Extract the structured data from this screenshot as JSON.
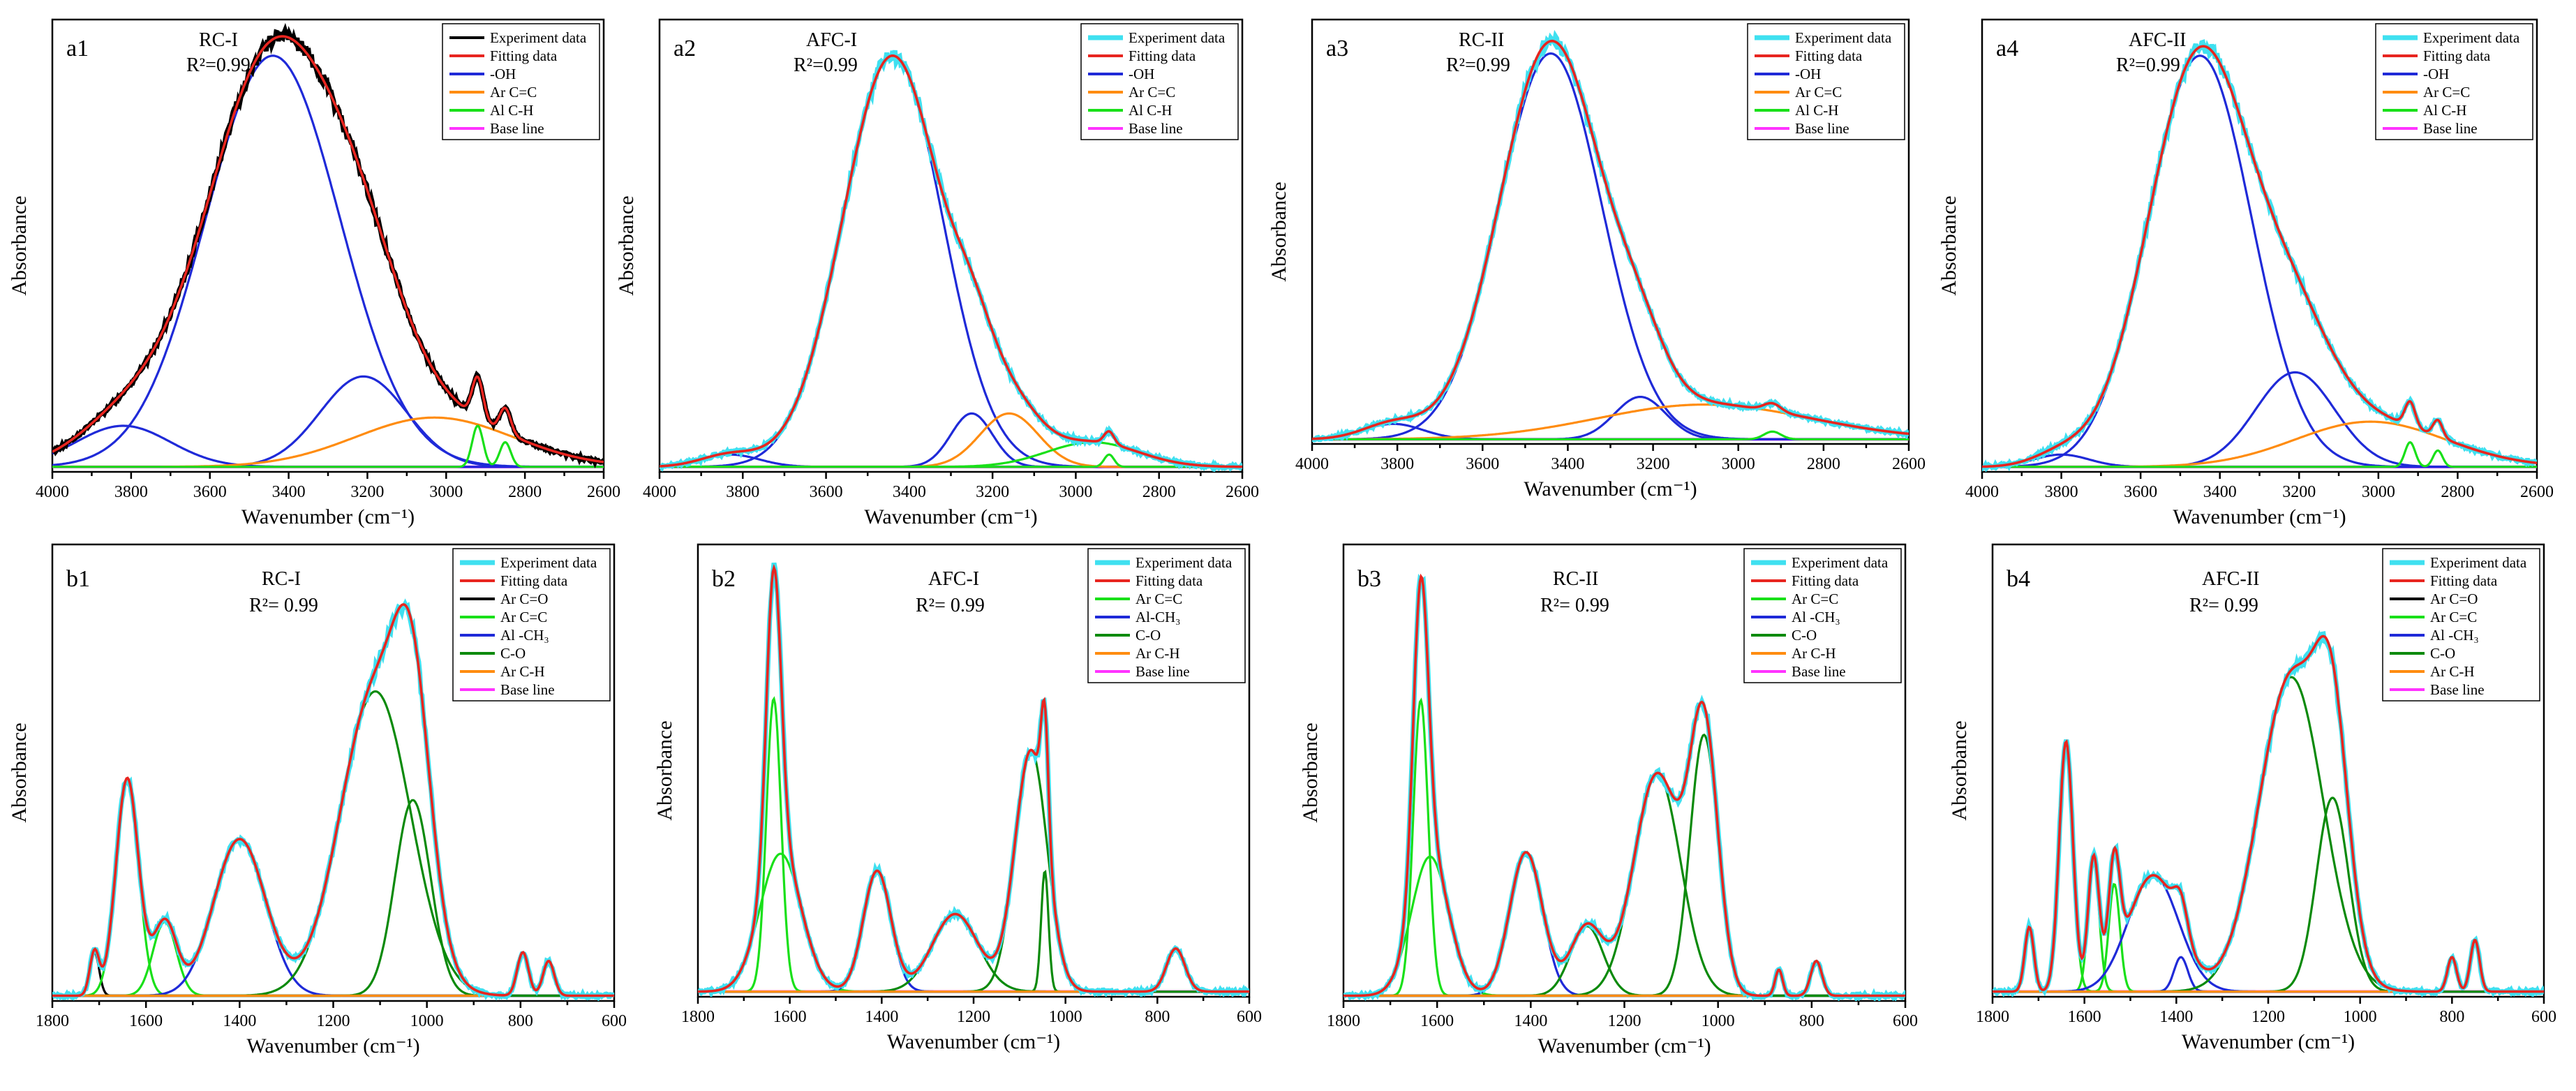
{
  "figure": {
    "domain": "spectroscopy"
  },
  "colors": {
    "experiment": "#3fe0f0",
    "fitting": "#e8251f",
    "oh": "#1f2ad8",
    "ar_cc": "#ff8c10",
    "al_ch": "#19e019",
    "base": "#ff33ff",
    "ar_co": "#000000",
    "ar_cc_b": "#19e019",
    "al_ch3": "#1f2ad8",
    "c_o": "#0b8a0b",
    "ar_ch_b": "#ff8c10"
  },
  "chart_data": [
    {
      "id": "a1",
      "tag": "a1",
      "sample": "RC-I",
      "r2": "R²=0.99",
      "type": "line",
      "xlim": [
        4000,
        2600
      ],
      "ylim": [
        0,
        1.1
      ],
      "xticks": [
        "4000",
        "3800",
        "3600",
        "3400",
        "3200",
        "3000",
        "2800",
        "2600"
      ],
      "xlabel": "Wavenumber (cm⁻¹)",
      "ylabel": "Absorbance",
      "legend": [
        "Experiment data",
        "Fitting data",
        "-OH",
        "Ar C=C",
        "Al C-H",
        "Base line"
      ],
      "legend_colors": [
        "#000000",
        "#e8251f",
        "#1f2ad8",
        "#ff8c10",
        "#19e019",
        "#ff33ff"
      ],
      "exp_color": "#000000",
      "components": [
        {
          "name": "-OH",
          "color": "#1f2ad8",
          "peaks": [
            [
              3440,
              1.0,
              170
            ]
          ]
        },
        {
          "name": "-OH",
          "color": "#1f2ad8",
          "peaks": [
            [
              3210,
              0.22,
              110
            ]
          ]
        },
        {
          "name": "-OH",
          "color": "#1f2ad8",
          "peaks": [
            [
              3820,
              0.1,
              120
            ]
          ]
        },
        {
          "name": "Ar C=C",
          "color": "#ff8c10",
          "peaks": [
            [
              3030,
              0.12,
              200
            ]
          ]
        },
        {
          "name": "Al C-H",
          "color": "#19e019",
          "peaks": [
            [
              2920,
              0.1,
              14
            ],
            [
              2850,
              0.06,
              14
            ]
          ]
        }
      ]
    },
    {
      "id": "a2",
      "tag": "a2",
      "sample": "AFC-I",
      "r2": "R²=0.99",
      "type": "line",
      "xlim": [
        4000,
        2600
      ],
      "ylim": [
        0,
        1.1
      ],
      "xticks": [
        "4000",
        "3800",
        "3600",
        "3400",
        "3200",
        "3000",
        "2800",
        "2600"
      ],
      "xlabel": "Wavenumber (cm⁻¹)",
      "ylabel": "Absorbance",
      "legend": [
        "Experiment data",
        "Fitting data",
        "-OH",
        "Ar C=C",
        "Al C-H",
        "Base line"
      ],
      "legend_colors": [
        "#3fe0f0",
        "#e8251f",
        "#1f2ad8",
        "#ff8c10",
        "#19e019",
        "#ff33ff"
      ],
      "exp_color": "#3fe0f0",
      "components": [
        {
          "name": "-OH",
          "color": "#1f2ad8",
          "peaks": [
            [
              3440,
              1.0,
              120
            ]
          ]
        },
        {
          "name": "-OH",
          "color": "#1f2ad8",
          "peaks": [
            [
              3250,
              0.13,
              50
            ]
          ]
        },
        {
          "name": "-OH",
          "color": "#1f2ad8",
          "peaks": [
            [
              3830,
              0.03,
              70
            ]
          ]
        },
        {
          "name": "Ar C=C",
          "color": "#ff8c10",
          "peaks": [
            [
              3160,
              0.13,
              70
            ]
          ]
        },
        {
          "name": "Al C-H",
          "color": "#19e019",
          "peaks": [
            [
              2960,
              0.06,
              110
            ]
          ]
        },
        {
          "name": "Al C-H",
          "color": "#19e019",
          "peaks": [
            [
              2920,
              0.03,
              12
            ]
          ]
        }
      ]
    },
    {
      "id": "a3",
      "tag": "a3",
      "sample": "RC-II",
      "r2": "R²=0.99",
      "type": "line",
      "xlim": [
        4000,
        2600
      ],
      "ylim": [
        0,
        1.1
      ],
      "xticks": [
        "4000",
        "3800",
        "3600",
        "3400",
        "3200",
        "3000",
        "2800",
        "2600"
      ],
      "xlabel": "Wavenumber (cm⁻¹)",
      "ylabel": "Absorbance",
      "legend": [
        "Experiment data",
        "Fitting data",
        "-OH",
        "Ar C=C",
        "Al C-H",
        "Base line"
      ],
      "legend_colors": [
        "#3fe0f0",
        "#e8251f",
        "#1f2ad8",
        "#ff8c10",
        "#19e019",
        "#ff33ff"
      ],
      "exp_color": "#3fe0f0",
      "components": [
        {
          "name": "-OH",
          "color": "#1f2ad8",
          "peaks": [
            [
              3440,
              1.0,
              120
            ]
          ]
        },
        {
          "name": "-OH",
          "color": "#1f2ad8",
          "peaks": [
            [
              3230,
              0.11,
              60
            ]
          ]
        },
        {
          "name": "-OH",
          "color": "#1f2ad8",
          "peaks": [
            [
              3810,
              0.04,
              70
            ]
          ]
        },
        {
          "name": "Ar C=C",
          "color": "#ff8c10",
          "peaks": [
            [
              3080,
              0.09,
              250
            ]
          ]
        },
        {
          "name": "Al C-H",
          "color": "#19e019",
          "peaks": [
            [
              2920,
              0.02,
              20
            ]
          ]
        }
      ]
    },
    {
      "id": "a4",
      "tag": "a4",
      "sample": "AFC-II",
      "r2": "R²=0.99",
      "type": "line",
      "xlim": [
        4000,
        2600
      ],
      "ylim": [
        0,
        1.1
      ],
      "xticks": [
        "4000",
        "3800",
        "3600",
        "3400",
        "3200",
        "3000",
        "2800",
        "2600"
      ],
      "xlabel": "Wavenumber (cm⁻¹)",
      "ylabel": "Absorbance",
      "legend": [
        "Experiment data",
        "Fitting data",
        "-OH",
        "Ar C=C",
        "Al C-H",
        "Base line"
      ],
      "legend_colors": [
        "#3fe0f0",
        "#e8251f",
        "#1f2ad8",
        "#ff8c10",
        "#19e019",
        "#ff33ff"
      ],
      "exp_color": "#3fe0f0",
      "components": [
        {
          "name": "-OH",
          "color": "#1f2ad8",
          "peaks": [
            [
              3450,
              1.0,
              130
            ]
          ]
        },
        {
          "name": "-OH",
          "color": "#1f2ad8",
          "peaks": [
            [
              3210,
              0.23,
              100
            ]
          ]
        },
        {
          "name": "-OH",
          "color": "#1f2ad8",
          "peaks": [
            [
              3800,
              0.03,
              70
            ]
          ]
        },
        {
          "name": "Ar C=C",
          "color": "#ff8c10",
          "peaks": [
            [
              3020,
              0.11,
              190
            ]
          ]
        },
        {
          "name": "Al C-H",
          "color": "#19e019",
          "peaks": [
            [
              2920,
              0.06,
              13
            ],
            [
              2850,
              0.04,
              12
            ]
          ]
        }
      ]
    },
    {
      "id": "b1",
      "tag": "b1",
      "sample": "RC-I",
      "r2": "R²= 0.99",
      "type": "line",
      "xlim": [
        1800,
        600
      ],
      "ylim": [
        0,
        1.05
      ],
      "xticks": [
        "1800",
        "1600",
        "1400",
        "1200",
        "1000",
        "800",
        "600"
      ],
      "xlabel": "Wavenumber (cm⁻¹)",
      "ylabel": "Absorbance",
      "legend": [
        "Experiment data",
        "Fitting data",
        "Ar C=O",
        "Ar C=C",
        "Al -CH₃",
        "C-O",
        "Ar C-H",
        "Base line"
      ],
      "legend_colors": [
        "#3fe0f0",
        "#e8251f",
        "#000000",
        "#19e019",
        "#1f2ad8",
        "#0b8a0b",
        "#ff8c10",
        "#ff33ff"
      ],
      "exp_color": "#3fe0f0",
      "components": [
        {
          "name": "Ar C=O",
          "color": "#000000",
          "peaks": [
            [
              1710,
              0.1,
              10
            ]
          ]
        },
        {
          "name": "Ar C=C",
          "color": "#19e019",
          "peaks": [
            [
              1640,
              0.5,
              24
            ]
          ]
        },
        {
          "name": "Ar C=C",
          "color": "#19e019",
          "peaks": [
            [
              1560,
              0.17,
              25
            ]
          ]
        },
        {
          "name": "Al -CH₃",
          "color": "#1f2ad8",
          "peaks": [
            [
              1400,
              0.36,
              55
            ]
          ]
        },
        {
          "name": "C-O",
          "color": "#0b8a0b",
          "peaks": [
            [
              1110,
              0.7,
              75
            ]
          ]
        },
        {
          "name": "C-O",
          "color": "#0b8a0b",
          "peaks": [
            [
              1030,
              0.45,
              38
            ]
          ]
        },
        {
          "name": "Ar C-H",
          "color": "#ff8c10",
          "peaks": [
            [
              795,
              0.1,
              12
            ],
            [
              740,
              0.08,
              12
            ]
          ]
        }
      ]
    },
    {
      "id": "b2",
      "tag": "b2",
      "sample": "AFC-I",
      "r2": "R²= 0.99",
      "type": "line",
      "xlim": [
        1800,
        600
      ],
      "ylim": [
        0,
        1.05
      ],
      "xticks": [
        "1800",
        "1600",
        "1400",
        "1200",
        "1000",
        "800",
        "600"
      ],
      "xlabel": "Wavenumber (cm⁻¹)",
      "ylabel": "Absorbance",
      "legend": [
        "Experiment data",
        "Fitting data",
        "Ar C=C",
        "Al-CH₃",
        "C-O",
        "Ar C-H",
        "Base line"
      ],
      "legend_colors": [
        "#3fe0f0",
        "#e8251f",
        "#19e019",
        "#1f2ad8",
        "#0b8a0b",
        "#ff8c10",
        "#ff33ff"
      ],
      "exp_color": "#3fe0f0",
      "components": [
        {
          "name": "Ar C=C",
          "color": "#19e019",
          "peaks": [
            [
              1635,
              0.68,
              16
            ]
          ]
        },
        {
          "name": "Ar C=C",
          "color": "#19e019",
          "peaks": [
            [
              1620,
              0.32,
              45
            ]
          ]
        },
        {
          "name": "Al-CH₃",
          "color": "#1f2ad8",
          "peaks": [
            [
              1410,
              0.28,
              30
            ]
          ]
        },
        {
          "name": "C-O",
          "color": "#0b8a0b",
          "peaks": [
            [
              1240,
              0.18,
              50
            ]
          ]
        },
        {
          "name": "C-O",
          "color": "#0b8a0b",
          "peaks": [
            [
              1075,
              0.56,
              35
            ]
          ]
        },
        {
          "name": "C-O",
          "color": "#0b8a0b",
          "peaks": [
            [
              1045,
              0.28,
              8
            ]
          ]
        },
        {
          "name": "Ar C-H",
          "color": "#ff8c10",
          "peaks": [
            [
              760,
              0.1,
              20
            ]
          ]
        }
      ]
    },
    {
      "id": "b3",
      "tag": "b3",
      "sample": "RC-II",
      "r2": "R²= 0.99",
      "type": "line",
      "xlim": [
        1800,
        600
      ],
      "ylim": [
        0,
        1.05
      ],
      "xticks": [
        "1800",
        "1600",
        "1400",
        "1200",
        "1000",
        "800",
        "600"
      ],
      "xlabel": "Wavenumber (cm⁻¹)",
      "ylabel": "Absorbance",
      "legend": [
        "Experiment data",
        "Fitting data",
        "Ar C=C",
        "Al -CH₃",
        "C-O",
        "Ar C-H",
        "Base line"
      ],
      "legend_colors": [
        "#3fe0f0",
        "#e8251f",
        "#19e019",
        "#1f2ad8",
        "#0b8a0b",
        "#ff8c10",
        "#ff33ff"
      ],
      "exp_color": "#3fe0f0",
      "components": [
        {
          "name": "Ar C=C",
          "color": "#19e019",
          "peaks": [
            [
              1635,
              0.68,
              16
            ]
          ]
        },
        {
          "name": "Ar C=C",
          "color": "#19e019",
          "peaks": [
            [
              1615,
              0.32,
              40
            ]
          ]
        },
        {
          "name": "Al -CH₃",
          "color": "#1f2ad8",
          "peaks": [
            [
              1410,
              0.33,
              35
            ]
          ]
        },
        {
          "name": "C-O",
          "color": "#0b8a0b",
          "peaks": [
            [
              1280,
              0.16,
              35
            ]
          ]
        },
        {
          "name": "C-O",
          "color": "#0b8a0b",
          "peaks": [
            [
              1130,
              0.51,
              50
            ]
          ]
        },
        {
          "name": "C-O",
          "color": "#0b8a0b",
          "peaks": [
            [
              1030,
              0.6,
              30
            ]
          ]
        },
        {
          "name": "Ar C-H",
          "color": "#ff8c10",
          "peaks": [
            [
              870,
              0.06,
              8
            ],
            [
              790,
              0.08,
              12
            ]
          ]
        }
      ]
    },
    {
      "id": "b4",
      "tag": "b4",
      "sample": "AFC-II",
      "r2": "R²= 0.99",
      "type": "line",
      "xlim": [
        1800,
        600
      ],
      "ylim": [
        0,
        1.05
      ],
      "xticks": [
        "1800",
        "1600",
        "1400",
        "1200",
        "1000",
        "800",
        "600"
      ],
      "xlabel": "Wavenumber (cm⁻¹)",
      "ylabel": "Absorbance",
      "legend": [
        "Experiment data",
        "Fitting data",
        "Ar C=O",
        "Ar C=C",
        "Al -CH₃",
        "C-O",
        "Ar C-H",
        "Base line"
      ],
      "legend_colors": [
        "#3fe0f0",
        "#e8251f",
        "#000000",
        "#19e019",
        "#1f2ad8",
        "#0b8a0b",
        "#ff8c10",
        "#ff33ff"
      ],
      "exp_color": "#3fe0f0",
      "components": [
        {
          "name": "Ar C=O",
          "color": "#000000",
          "peaks": [
            [
              1720,
              0.15,
              10
            ]
          ]
        },
        {
          "name": "Ar C=C",
          "color": "#19e019",
          "peaks": [
            [
              1640,
              0.58,
              15
            ]
          ]
        },
        {
          "name": "Ar C=C",
          "color": "#19e019",
          "peaks": [
            [
              1580,
              0.3,
              12
            ]
          ]
        },
        {
          "name": "Ar C=C",
          "color": "#19e019",
          "peaks": [
            [
              1535,
              0.25,
              12
            ]
          ]
        },
        {
          "name": "Al -CH₃",
          "color": "#1f2ad8",
          "peaks": [
            [
              1450,
              0.27,
              55
            ]
          ]
        },
        {
          "name": "Al -CH₃",
          "color": "#1f2ad8",
          "peaks": [
            [
              1390,
              0.08,
              15
            ]
          ]
        },
        {
          "name": "C-O",
          "color": "#0b8a0b",
          "peaks": [
            [
              1150,
              0.73,
              70
            ]
          ]
        },
        {
          "name": "C-O",
          "color": "#0b8a0b",
          "peaks": [
            [
              1060,
              0.45,
              35
            ]
          ]
        },
        {
          "name": "Ar C-H",
          "color": "#ff8c10",
          "peaks": [
            [
              800,
              0.08,
              10
            ],
            [
              750,
              0.12,
              10
            ]
          ]
        }
      ]
    }
  ]
}
